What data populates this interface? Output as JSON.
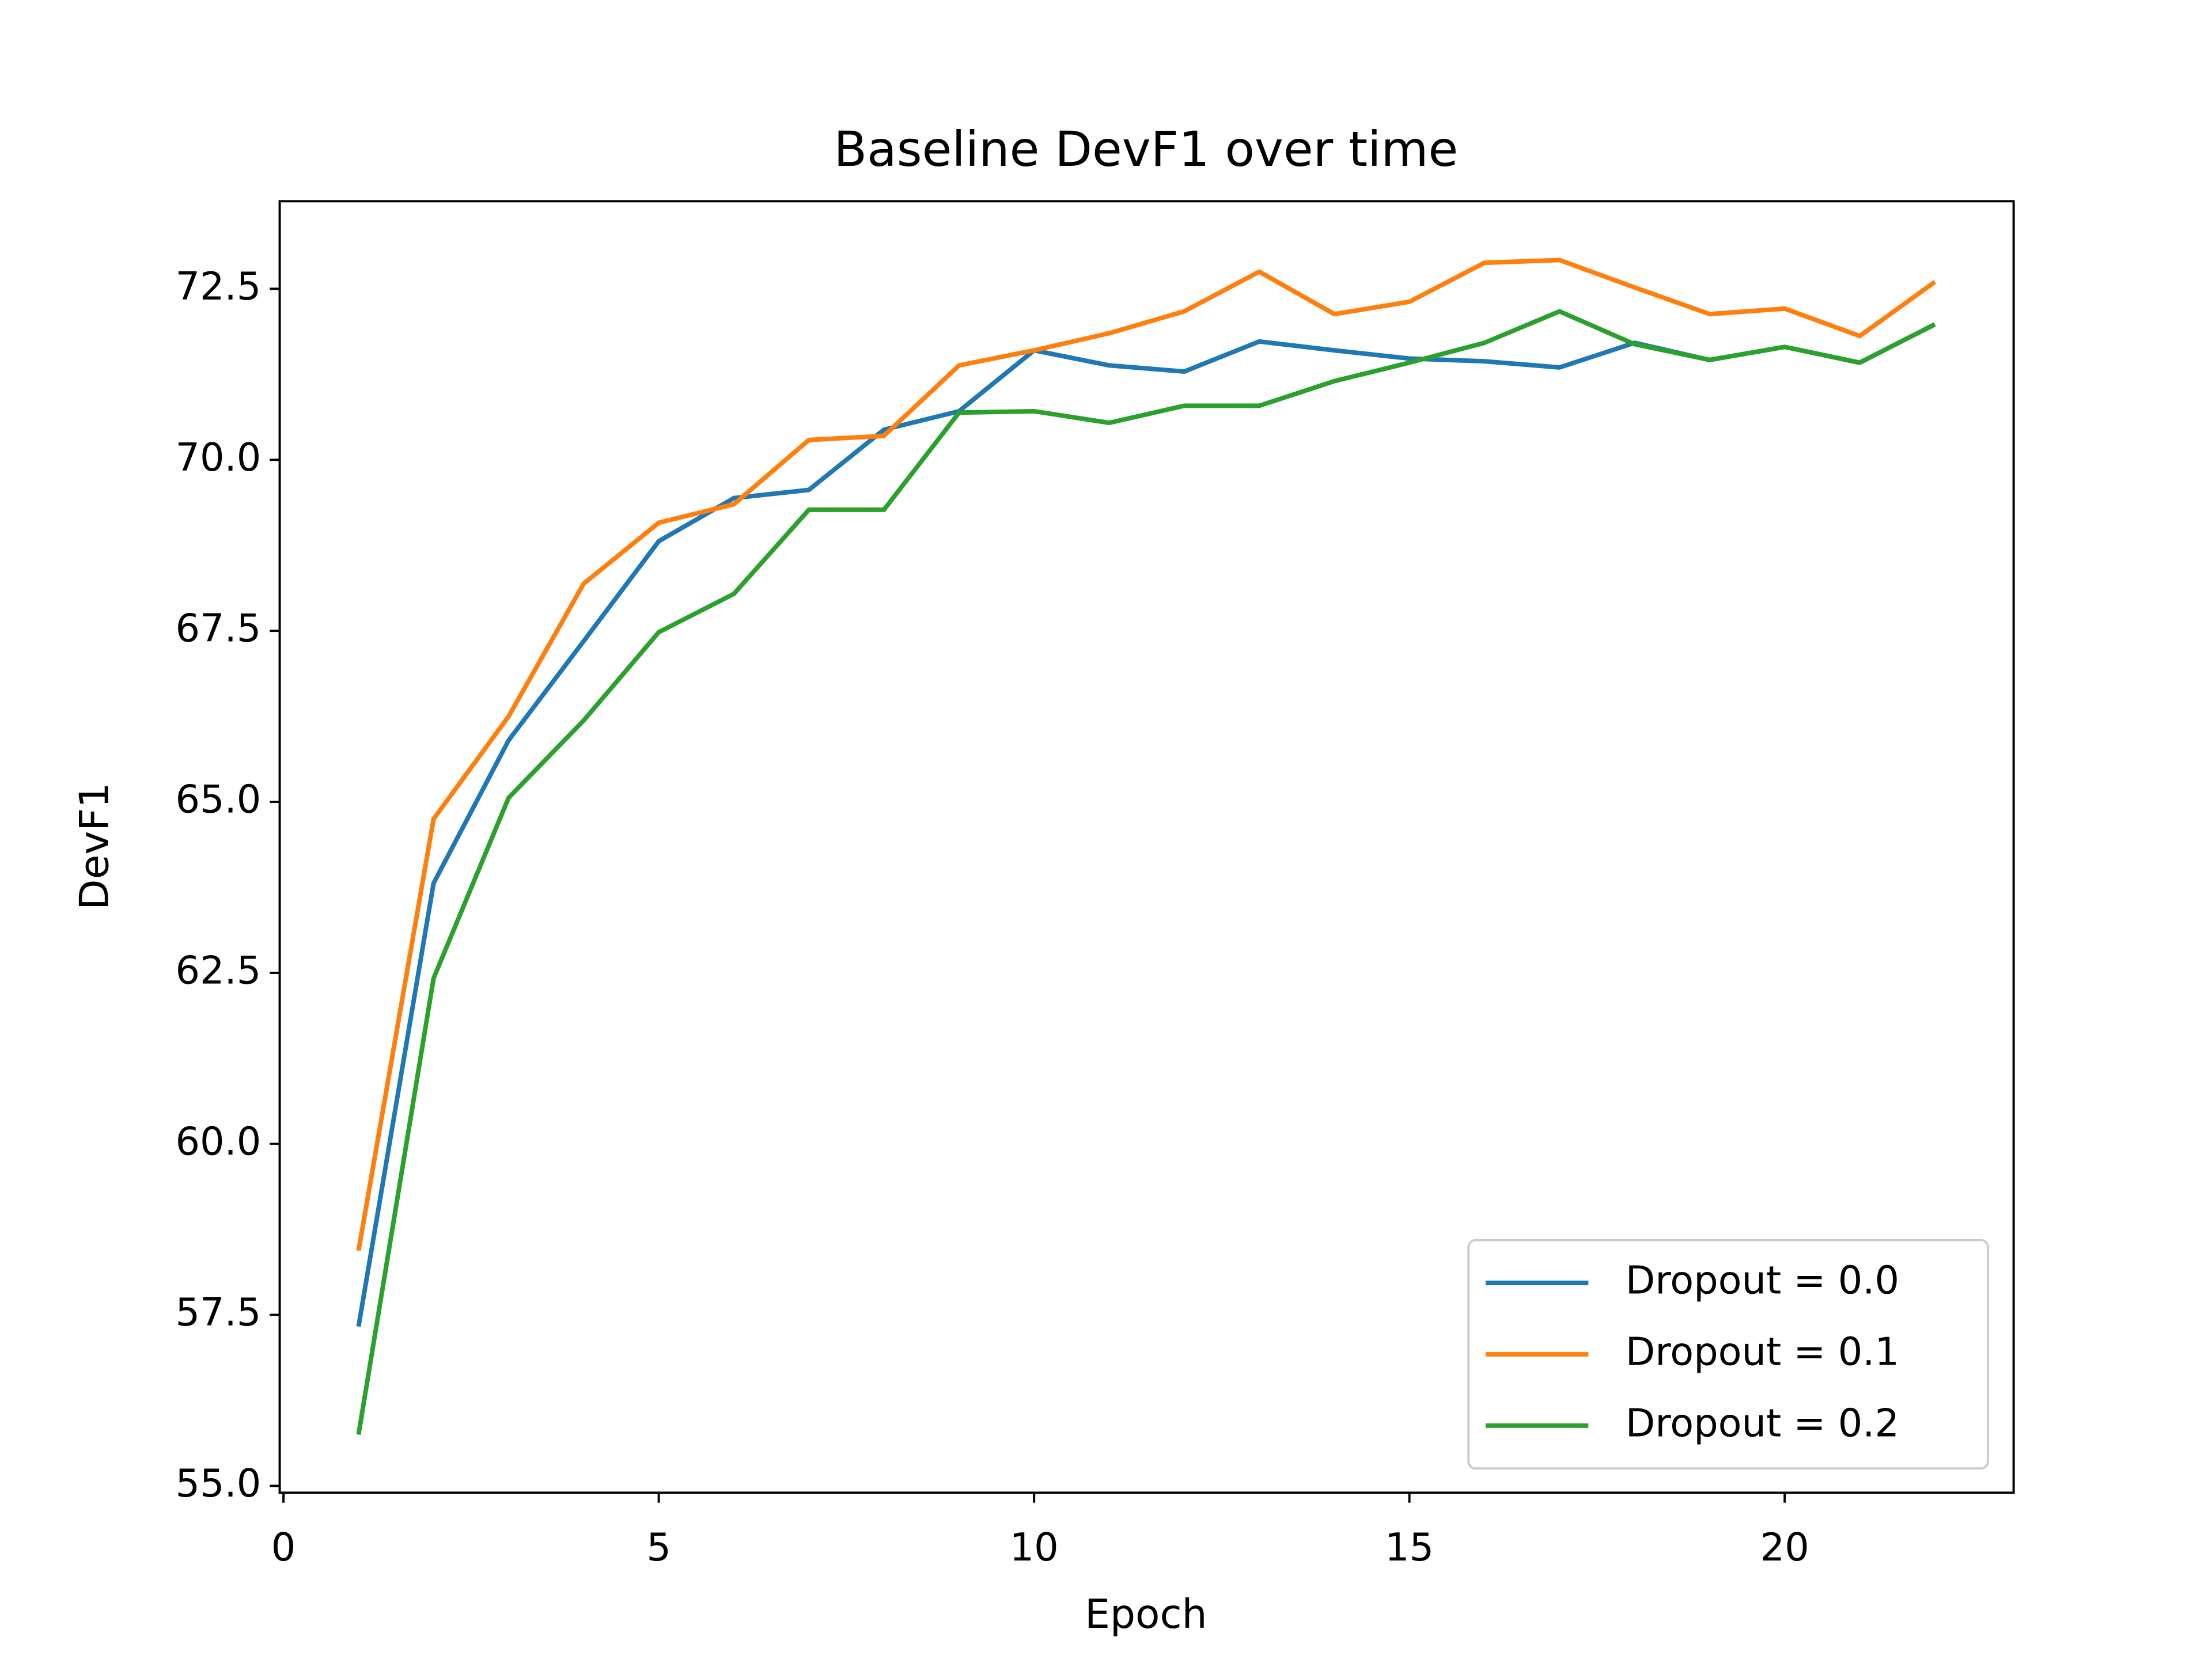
{
  "chart_data": {
    "type": "line",
    "title": "Baseline DevF1 over time",
    "xlabel": "Epoch",
    "ylabel": "DevF1",
    "x": [
      1,
      2,
      3,
      4,
      5,
      6,
      7,
      8,
      9,
      10,
      11,
      12,
      13,
      14,
      15,
      16,
      17,
      18,
      19,
      20,
      21,
      22
    ],
    "series": [
      {
        "name": "Dropout = 0.0",
        "color": "#1f77b4",
        "values": [
          57.33,
          63.81,
          65.9,
          67.35,
          68.81,
          69.44,
          69.56,
          70.44,
          70.71,
          71.6,
          71.38,
          71.29,
          71.73,
          71.6,
          71.48,
          71.44,
          71.35,
          71.71,
          71.46,
          71.65,
          71.42,
          71.98
        ]
      },
      {
        "name": "Dropout = 0.1",
        "color": "#ff7f0e",
        "values": [
          58.44,
          64.75,
          66.25,
          68.19,
          69.08,
          69.35,
          70.29,
          70.35,
          71.38,
          71.6,
          71.85,
          72.17,
          72.75,
          72.13,
          72.31,
          72.88,
          72.92,
          72.52,
          72.13,
          72.21,
          71.81,
          72.6
        ]
      },
      {
        "name": "Dropout = 0.2",
        "color": "#2ca02c",
        "values": [
          55.75,
          62.42,
          65.06,
          66.19,
          67.48,
          68.04,
          69.27,
          69.27,
          70.69,
          70.71,
          70.54,
          70.79,
          70.79,
          71.15,
          71.42,
          71.71,
          72.17,
          71.69,
          71.46,
          71.65,
          71.42,
          71.98
        ]
      }
    ],
    "xlim": [
      -0.05,
      23.05
    ],
    "xticks": [
      0,
      5,
      10,
      15,
      20
    ],
    "ylim": [
      54.9,
      73.78
    ],
    "yticks": [
      {
        "value": 55,
        "label": "55.0"
      },
      57.5,
      {
        "value": 60,
        "label": "60.0"
      },
      62.5,
      {
        "value": 65,
        "label": "65.0"
      },
      67.5,
      {
        "value": 70,
        "label": "70.0"
      },
      72.5
    ],
    "legend": "lower right",
    "grid": false
  }
}
